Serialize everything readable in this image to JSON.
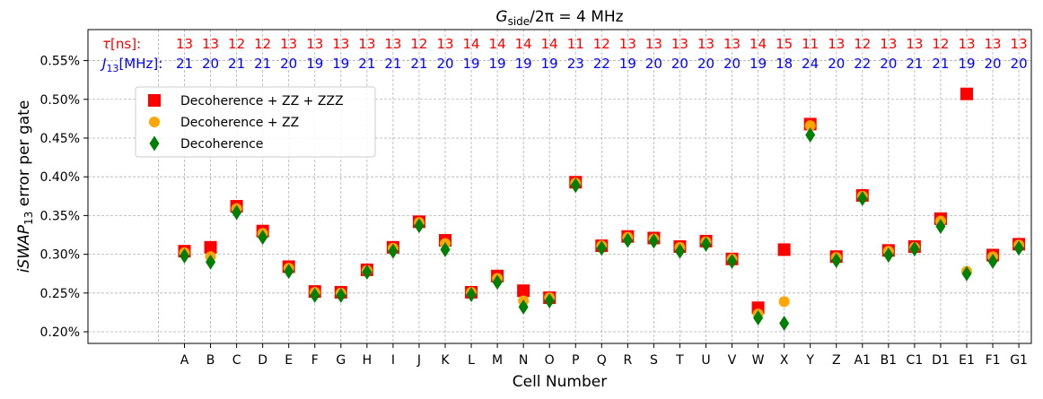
{
  "chart_data": {
    "type": "scatter",
    "title": "G_side/2π = 4 MHz",
    "title_parts": {
      "g": "G",
      "sub": "side",
      "rest": "/2π = 4 MHz"
    },
    "xlabel": "Cell Number",
    "ylabel_parts": {
      "main": "iSWAP",
      "sub": "13",
      "rest": " error per gate"
    },
    "ylim": [
      0.185,
      0.59
    ],
    "yticks": [
      0.2,
      0.25,
      0.3,
      0.35,
      0.4,
      0.45,
      0.5,
      0.55
    ],
    "ytick_labels": [
      "0.20%",
      "0.25%",
      "0.30%",
      "0.35%",
      "0.40%",
      "0.45%",
      "0.50%",
      "0.55%"
    ],
    "categories": [
      "A",
      "B",
      "C",
      "D",
      "E",
      "F",
      "G",
      "H",
      "I",
      "J",
      "K",
      "L",
      "M",
      "N",
      "O",
      "P",
      "Q",
      "R",
      "S",
      "T",
      "U",
      "V",
      "W",
      "X",
      "Y",
      "Z",
      "A1",
      "B1",
      "C1",
      "D1",
      "E1",
      "F1",
      "G1"
    ],
    "grid": true,
    "legend_position": "upper-left",
    "series": [
      {
        "name": "Decoherence + ZZ + ZZZ",
        "marker": "square",
        "color": "#ff0000",
        "values": [
          0.304,
          0.309,
          0.362,
          0.33,
          0.284,
          0.252,
          0.251,
          0.28,
          0.309,
          0.342,
          0.318,
          0.251,
          0.272,
          0.253,
          0.244,
          0.393,
          0.311,
          0.323,
          0.321,
          0.31,
          0.317,
          0.294,
          0.231,
          0.306,
          0.468,
          0.297,
          0.376,
          0.305,
          0.31,
          0.346,
          0.507,
          0.299,
          0.313
        ]
      },
      {
        "name": "Decoherence + ZZ",
        "marker": "circle",
        "color": "#ffa500",
        "values": [
          0.302,
          0.297,
          0.359,
          0.327,
          0.282,
          0.251,
          0.25,
          0.279,
          0.308,
          0.341,
          0.314,
          0.251,
          0.269,
          0.24,
          0.244,
          0.392,
          0.311,
          0.322,
          0.32,
          0.309,
          0.316,
          0.294,
          0.223,
          0.239,
          0.466,
          0.296,
          0.375,
          0.304,
          0.309,
          0.343,
          0.278,
          0.297,
          0.312
        ]
      },
      {
        "name": "Decoherence",
        "marker": "thin_diamond",
        "color": "#008000",
        "values": [
          0.298,
          0.29,
          0.354,
          0.322,
          0.278,
          0.247,
          0.247,
          0.277,
          0.304,
          0.337,
          0.306,
          0.248,
          0.264,
          0.232,
          0.24,
          0.389,
          0.308,
          0.318,
          0.317,
          0.304,
          0.313,
          0.291,
          0.218,
          0.211,
          0.454,
          0.292,
          0.372,
          0.299,
          0.307,
          0.336,
          0.275,
          0.291,
          0.308
        ]
      }
    ],
    "annotations": {
      "tau_label_main": "τ",
      "tau_label_rest": "[ns]:",
      "tau_color": "#ff0000",
      "tau_values": [
        "13",
        "13",
        "12",
        "12",
        "13",
        "13",
        "13",
        "13",
        "13",
        "12",
        "13",
        "14",
        "14",
        "14",
        "14",
        "11",
        "12",
        "13",
        "13",
        "13",
        "13",
        "13",
        "14",
        "15",
        "11",
        "13",
        "12",
        "13",
        "13",
        "12",
        "13",
        "13",
        "13"
      ],
      "j13_label_main": "J",
      "j13_label_sub": "13",
      "j13_label_rest": "[MHz]:",
      "j13_color": "#0000ff",
      "j13_values": [
        "21",
        "20",
        "21",
        "21",
        "20",
        "19",
        "19",
        "21",
        "21",
        "21",
        "20",
        "19",
        "19",
        "19",
        "19",
        "23",
        "22",
        "19",
        "20",
        "20",
        "20",
        "20",
        "19",
        "18",
        "24",
        "20",
        "22",
        "20",
        "21",
        "21",
        "19",
        "20",
        "20"
      ]
    }
  }
}
